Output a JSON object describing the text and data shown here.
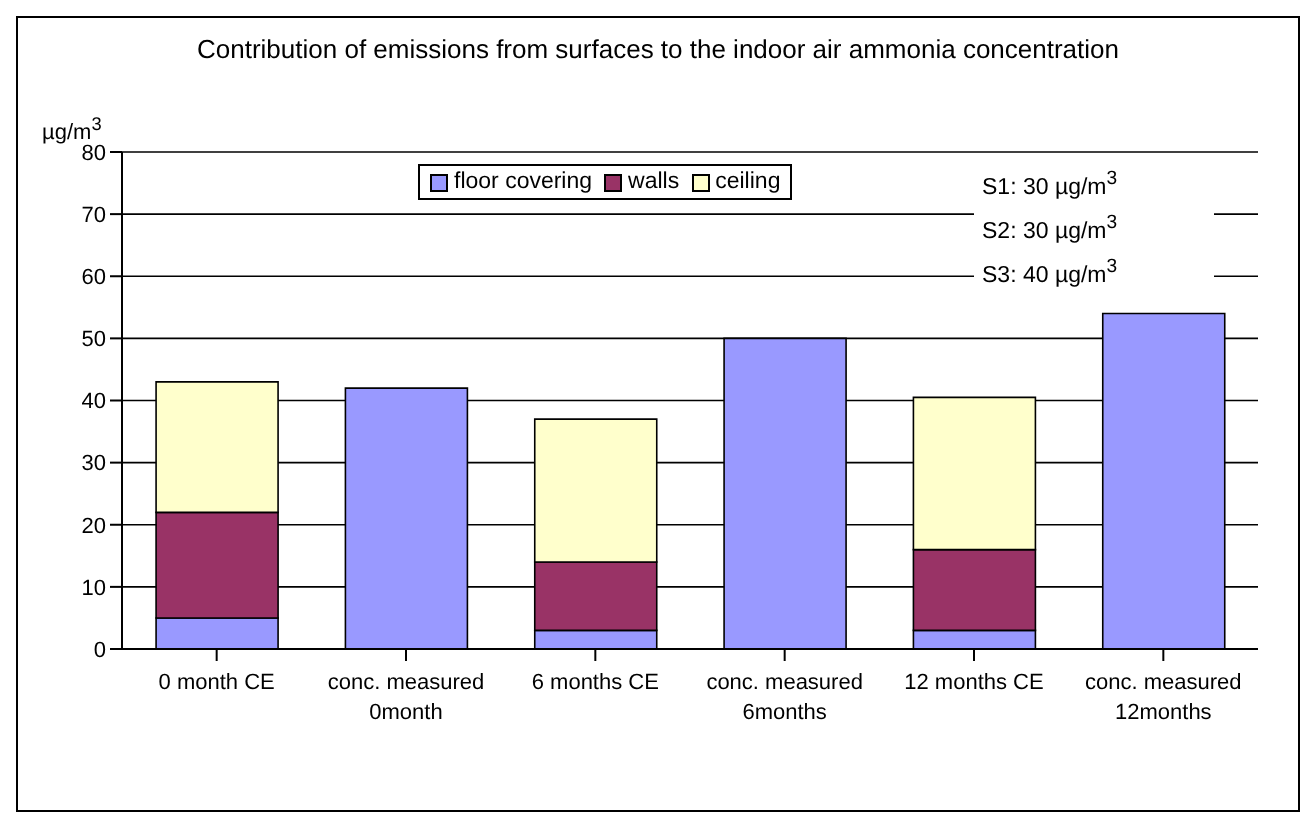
{
  "chart_data": {
    "type": "bar",
    "title": "Contribution of emissions from surfaces to the indoor air ammonia concentration",
    "ylabel": "µg/m$^{3}$",
    "categories": [
      "0 month CE",
      "conc. measured 0month",
      "6 months CE",
      "conc. measured 6months",
      "12 months CE",
      "conc. measured 12months"
    ],
    "stacked": true,
    "series": [
      {
        "name": "floor covering",
        "color": "#9999ff",
        "values": [
          5,
          42,
          3,
          50,
          3,
          54
        ]
      },
      {
        "name": "walls",
        "color": "#993366",
        "values": [
          17,
          0,
          11,
          0,
          13,
          0
        ]
      },
      {
        "name": "ceiling",
        "color": "#ffffcc",
        "values": [
          21,
          0,
          23,
          0,
          24.5,
          0
        ]
      }
    ],
    "ylim": [
      0,
      80
    ],
    "yticks": [
      0,
      10,
      20,
      30,
      40,
      50,
      60,
      70,
      80
    ],
    "grid": "y",
    "legend": "top",
    "annotations": [
      "S1: 30 µg/m$^{3}$",
      "S2: 30 µg/m$^{3}$",
      "S3: 40 µg/m$^{3}$"
    ]
  }
}
